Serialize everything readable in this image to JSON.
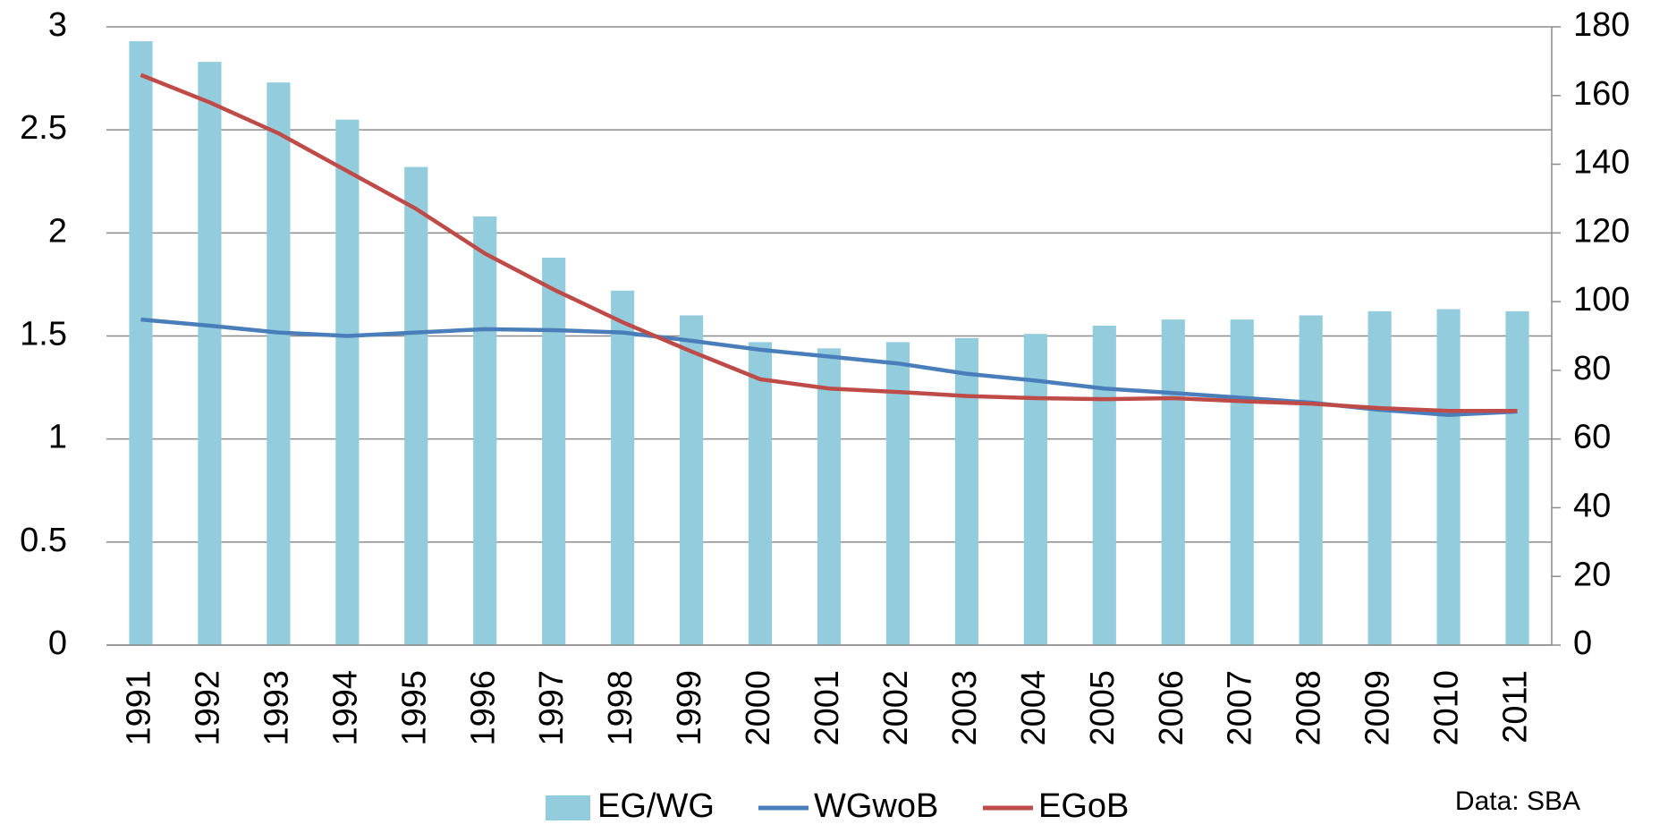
{
  "chart_data": {
    "type": "bar-line",
    "categories": [
      "1991",
      "1992",
      "1993",
      "1994",
      "1995",
      "1996",
      "1997",
      "1998",
      "1999",
      "2000",
      "2001",
      "2002",
      "2003",
      "2004",
      "2005",
      "2006",
      "2007",
      "2008",
      "2009",
      "2010",
      "2011"
    ],
    "series": [
      {
        "name": "EG/WG",
        "type": "bar",
        "color": "#93cddd",
        "axis": "y",
        "values": [
          2.93,
          2.83,
          2.73,
          2.55,
          2.32,
          2.08,
          1.88,
          1.72,
          1.6,
          1.47,
          1.44,
          1.47,
          1.49,
          1.51,
          1.55,
          1.58,
          1.58,
          1.6,
          1.62,
          1.63,
          1.62
        ]
      },
      {
        "name": "WGwoB",
        "type": "line",
        "color": "#4a7ebb",
        "axis": "y2",
        "values": [
          94.8,
          93,
          91,
          90,
          91,
          92,
          91.7,
          91,
          88.6,
          86,
          84,
          82,
          79,
          77,
          74.7,
          73.4,
          72,
          70.6,
          68.5,
          67,
          68
        ]
      },
      {
        "name": "EGoB",
        "type": "line",
        "color": "#be4b48",
        "axis": "y2",
        "values": [
          166,
          158,
          149,
          138,
          127,
          114,
          103.5,
          94,
          85.5,
          77.4,
          74.7,
          73.7,
          72.5,
          71.9,
          71.6,
          71.9,
          71,
          70.3,
          69,
          68.2,
          68.2
        ]
      }
    ],
    "ylim": [
      0,
      3
    ],
    "yticks": [
      0,
      0.5,
      1,
      1.5,
      2,
      2.5,
      3
    ],
    "y2lim": [
      0,
      180
    ],
    "y2ticks": [
      0,
      20,
      40,
      60,
      80,
      100,
      120,
      140,
      160,
      180
    ],
    "grid": true,
    "legend": "bottom",
    "annotation": "Data: SBA"
  }
}
